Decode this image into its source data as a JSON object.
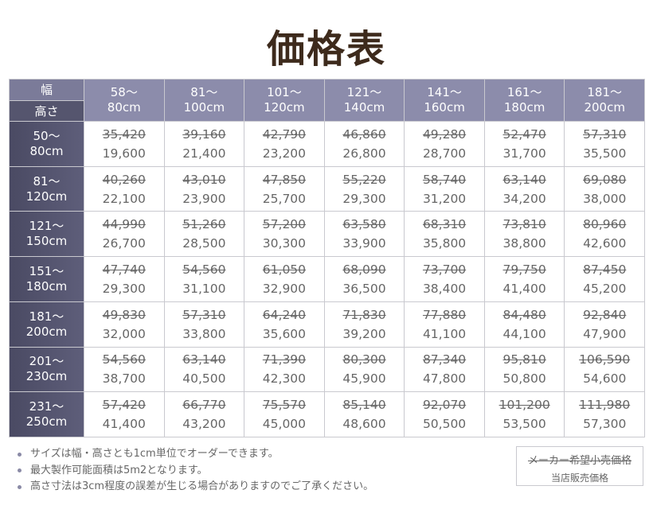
{
  "title": "価格表",
  "table": {
    "corner_width": "幅",
    "corner_height": "高さ",
    "columns": [
      {
        "from": "58〜",
        "to": "80cm"
      },
      {
        "from": "81〜",
        "to": "100cm"
      },
      {
        "from": "101〜",
        "to": "120cm"
      },
      {
        "from": "121〜",
        "to": "140cm"
      },
      {
        "from": "141〜",
        "to": "160cm"
      },
      {
        "from": "161〜",
        "to": "180cm"
      },
      {
        "from": "181〜",
        "to": "200cm"
      }
    ],
    "rows": [
      {
        "from": "50〜",
        "to": "80cm",
        "cells": [
          [
            "35,420",
            "19,600"
          ],
          [
            "39,160",
            "21,400"
          ],
          [
            "42,790",
            "23,200"
          ],
          [
            "46,860",
            "26,800"
          ],
          [
            "49,280",
            "28,700"
          ],
          [
            "52,470",
            "31,700"
          ],
          [
            "57,310",
            "35,500"
          ]
        ]
      },
      {
        "from": "81〜",
        "to": "120cm",
        "cells": [
          [
            "40,260",
            "22,100"
          ],
          [
            "43,010",
            "23,900"
          ],
          [
            "47,850",
            "25,700"
          ],
          [
            "55,220",
            "29,300"
          ],
          [
            "58,740",
            "31,200"
          ],
          [
            "63,140",
            "34,200"
          ],
          [
            "69,080",
            "38,000"
          ]
        ]
      },
      {
        "from": "121〜",
        "to": "150cm",
        "cells": [
          [
            "44,990",
            "26,700"
          ],
          [
            "51,260",
            "28,500"
          ],
          [
            "57,200",
            "30,300"
          ],
          [
            "63,580",
            "33,900"
          ],
          [
            "68,310",
            "35,800"
          ],
          [
            "73,810",
            "38,800"
          ],
          [
            "80,960",
            "42,600"
          ]
        ]
      },
      {
        "from": "151〜",
        "to": "180cm",
        "cells": [
          [
            "47,740",
            "29,300"
          ],
          [
            "54,560",
            "31,100"
          ],
          [
            "61,050",
            "32,900"
          ],
          [
            "68,090",
            "36,500"
          ],
          [
            "73,700",
            "38,400"
          ],
          [
            "79,750",
            "41,400"
          ],
          [
            "87,450",
            "45,200"
          ]
        ]
      },
      {
        "from": "181〜",
        "to": "200cm",
        "cells": [
          [
            "49,830",
            "32,000"
          ],
          [
            "57,310",
            "33,800"
          ],
          [
            "64,240",
            "35,600"
          ],
          [
            "71,830",
            "39,200"
          ],
          [
            "77,880",
            "41,100"
          ],
          [
            "84,480",
            "44,100"
          ],
          [
            "92,840",
            "47,900"
          ]
        ]
      },
      {
        "from": "201〜",
        "to": "230cm",
        "cells": [
          [
            "54,560",
            "38,700"
          ],
          [
            "63,140",
            "40,500"
          ],
          [
            "71,390",
            "42,300"
          ],
          [
            "80,300",
            "45,900"
          ],
          [
            "87,340",
            "47,800"
          ],
          [
            "95,810",
            "50,800"
          ],
          [
            "106,590",
            "54,600"
          ]
        ]
      },
      {
        "from": "231〜",
        "to": "250cm",
        "cells": [
          [
            "57,420",
            "41,400"
          ],
          [
            "66,770",
            "43,200"
          ],
          [
            "75,570",
            "45,000"
          ],
          [
            "85,140",
            "48,600"
          ],
          [
            "92,070",
            "50,500"
          ],
          [
            "101,200",
            "53,500"
          ],
          [
            "111,980",
            "57,300"
          ]
        ]
      }
    ]
  },
  "notes": [
    "サイズは幅・高さとも1cm単位でオーダーできます。",
    "最大製作可能面積は5m2となります。",
    "高さ寸法は3cm程度の誤差が生じる場合がありますのでご了承ください。"
  ],
  "legend": {
    "original_label": "メーカー希望小売価格",
    "sale_label": "当店販売価格"
  },
  "colors": {
    "title": "#3d2a1c",
    "column_header": "#8c8cab",
    "row_header": "#55556e",
    "grid_line": "#c9c9cf"
  }
}
